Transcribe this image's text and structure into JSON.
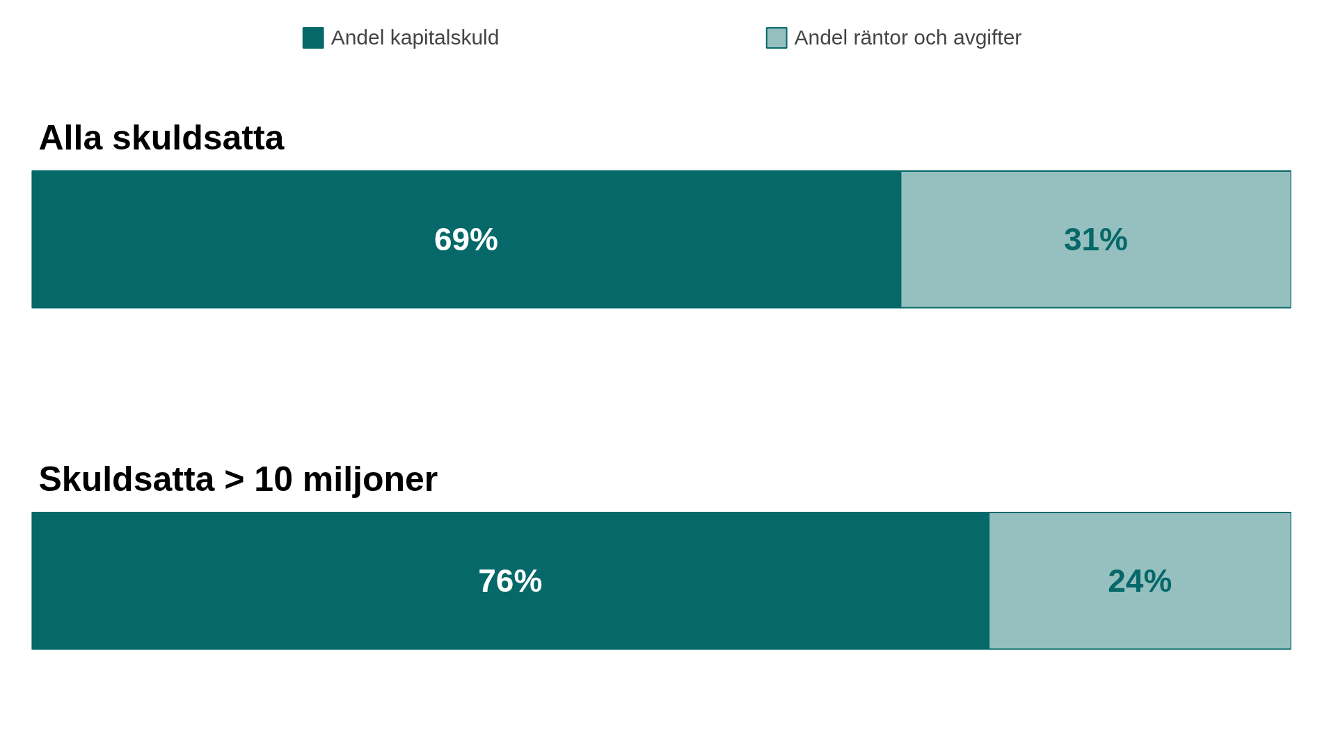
{
  "chart_data": {
    "type": "bar",
    "orientation": "horizontal",
    "stacked": true,
    "categories": [
      "Alla skuldsatta",
      "Skuldsatta > 10 miljoner"
    ],
    "series": [
      {
        "name": "Andel kapitalskuld",
        "color": "#066868",
        "values": [
          69,
          76
        ],
        "value_labels": [
          "69%",
          "76%"
        ]
      },
      {
        "name": "Andel räntor och avgifter",
        "color": "#96c0c0",
        "values": [
          31,
          24
        ],
        "value_labels": [
          "31%",
          "24%"
        ]
      }
    ],
    "legend": "top"
  }
}
